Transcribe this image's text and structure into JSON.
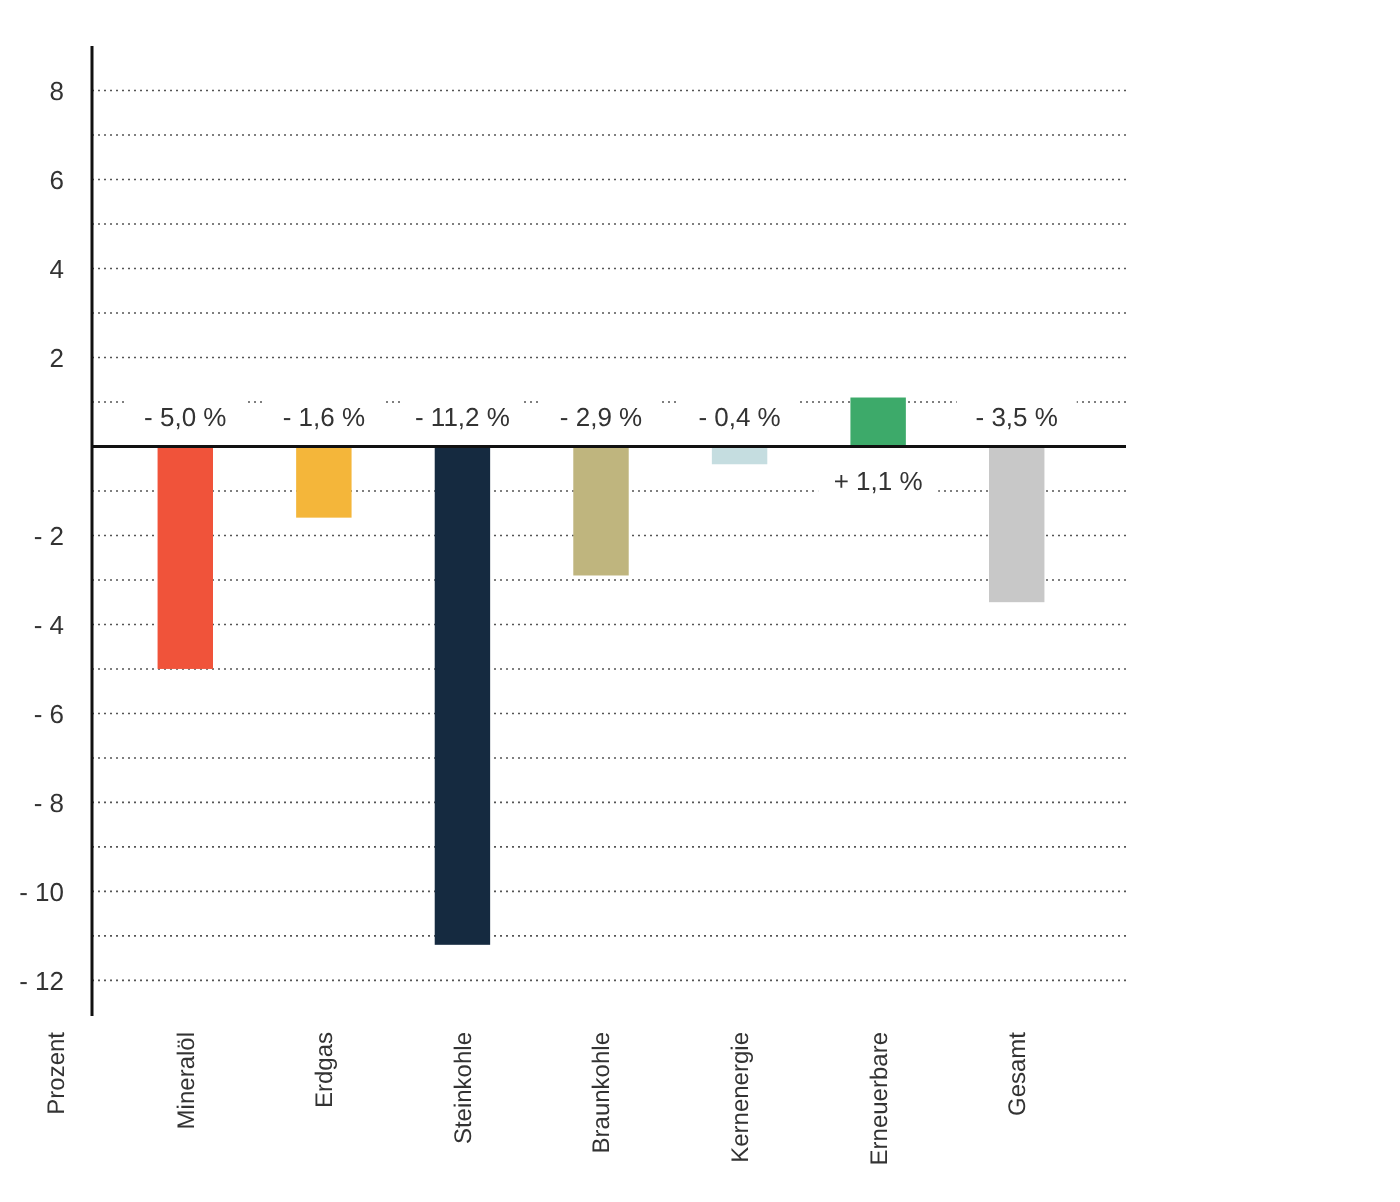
{
  "chart_data": {
    "type": "bar",
    "ylabel": "Prozent",
    "categories": [
      "Mineralöl",
      "Erdgas",
      "Steinkohle",
      "Braunkohle",
      "Kernenergie",
      "Erneuerbare",
      "Gesamt"
    ],
    "values": [
      -5.0,
      -1.6,
      -11.2,
      -2.9,
      -0.4,
      1.1,
      -3.5
    ],
    "colors": [
      "#f0533a",
      "#f4b63a",
      "#152a40",
      "#bfb57e",
      "#c5dde0",
      "#3daa6a",
      "#c8c8c8"
    ],
    "value_labels": [
      "- 5,0 %",
      "- 1,6 %",
      "- 11,2 %",
      "- 2,9 %",
      "- 0,4 %",
      "+ 1,1 %",
      "- 3,5 %"
    ],
    "ylim": [
      -12.8,
      9
    ],
    "yticks": [
      {
        "value": 8,
        "label": "8"
      },
      {
        "value": 7,
        "label": null
      },
      {
        "value": 6,
        "label": "6"
      },
      {
        "value": 5,
        "label": null
      },
      {
        "value": 4,
        "label": "4"
      },
      {
        "value": 3,
        "label": null
      },
      {
        "value": 2,
        "label": "2"
      },
      {
        "value": 1,
        "label": null
      },
      {
        "value": 0,
        "label": null
      },
      {
        "value": -1,
        "label": null
      },
      {
        "value": -2,
        "label": "- 2"
      },
      {
        "value": -3,
        "label": null
      },
      {
        "value": -4,
        "label": "- 4"
      },
      {
        "value": -5,
        "label": null
      },
      {
        "value": -6,
        "label": "- 6"
      },
      {
        "value": -7,
        "label": null
      },
      {
        "value": -8,
        "label": "- 8"
      },
      {
        "value": -9,
        "label": null
      },
      {
        "value": -10,
        "label": "- 10"
      },
      {
        "value": -11,
        "label": null
      },
      {
        "value": -12,
        "label": "- 12"
      }
    ],
    "grid": "y"
  }
}
